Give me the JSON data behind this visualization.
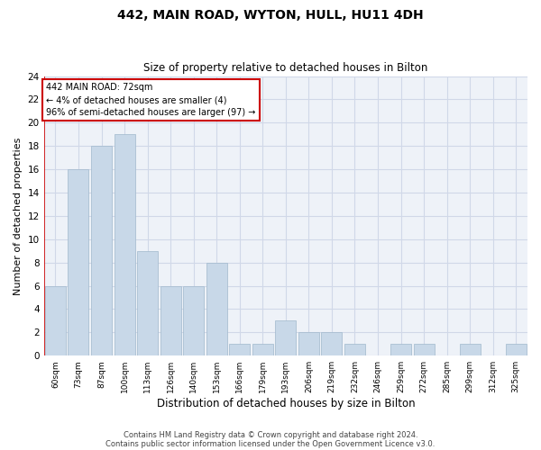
{
  "title": "442, MAIN ROAD, WYTON, HULL, HU11 4DH",
  "subtitle": "Size of property relative to detached houses in Bilton",
  "xlabel": "Distribution of detached houses by size in Bilton",
  "ylabel": "Number of detached properties",
  "bar_color": "#c8d8e8",
  "bar_edge_color": "#a0b8cc",
  "categories": [
    "60sqm",
    "73sqm",
    "87sqm",
    "100sqm",
    "113sqm",
    "126sqm",
    "140sqm",
    "153sqm",
    "166sqm",
    "179sqm",
    "193sqm",
    "206sqm",
    "219sqm",
    "232sqm",
    "246sqm",
    "259sqm",
    "272sqm",
    "285sqm",
    "299sqm",
    "312sqm",
    "325sqm"
  ],
  "values": [
    6,
    16,
    18,
    19,
    9,
    6,
    6,
    8,
    1,
    1,
    3,
    2,
    2,
    1,
    0,
    1,
    1,
    0,
    1,
    0,
    1
  ],
  "ylim": [
    0,
    24
  ],
  "yticks": [
    0,
    2,
    4,
    6,
    8,
    10,
    12,
    14,
    16,
    18,
    20,
    22,
    24
  ],
  "annotation_text": "442 MAIN ROAD: 72sqm\n← 4% of detached houses are smaller (4)\n96% of semi-detached houses are larger (97) →",
  "footnote1": "Contains HM Land Registry data © Crown copyright and database right 2024.",
  "footnote2": "Contains public sector information licensed under the Open Government Licence v3.0.",
  "vline_color": "#cc0000",
  "annotation_box_color": "#cc0000",
  "grid_color": "#d0d8e8",
  "background_color": "#eef2f8",
  "title_fontsize": 10,
  "subtitle_fontsize": 8.5,
  "ylabel_fontsize": 8,
  "xlabel_fontsize": 8.5,
  "annotation_fontsize": 7,
  "footnote_fontsize": 6,
  "ytick_fontsize": 7.5,
  "xtick_fontsize": 6.5
}
